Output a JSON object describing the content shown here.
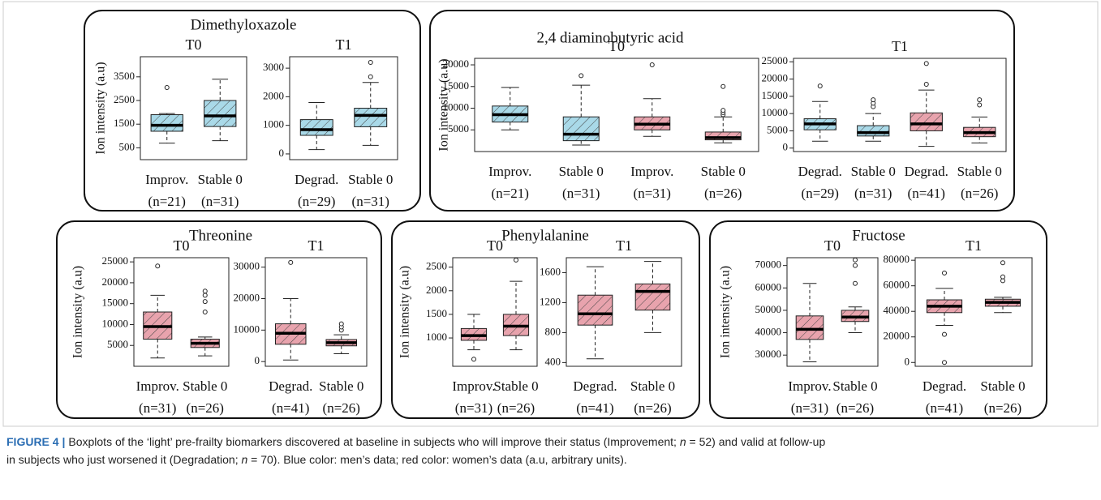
{
  "chart_data": [
    {
      "type": "box",
      "panel_title": "Dimethyloxazole",
      "title": "T0",
      "ylabel": "Ion intensity (a.u)",
      "categories": [
        "Improv.",
        "Stable 0"
      ],
      "n_labels": [
        "(n=21)",
        "(n=31)"
      ],
      "ylim": [
        0,
        4350
      ],
      "yticks": [
        500,
        1500,
        2500,
        3500
      ],
      "boxes": [
        {
          "color": "#a9d9e8",
          "whislo": 700,
          "q1": 1200,
          "med": 1450,
          "q3": 1900,
          "whishi": 1950,
          "fliers": [
            3050
          ]
        },
        {
          "color": "#a9d9e8",
          "whislo": 800,
          "q1": 1400,
          "med": 1850,
          "q3": 2500,
          "whishi": 3400,
          "fliers": []
        }
      ]
    },
    {
      "type": "box",
      "title": "T1",
      "categories": [
        "Degrad.",
        "Stable 0"
      ],
      "n_labels": [
        "(n=29)",
        "(n=31)"
      ],
      "ylim": [
        -200,
        3400
      ],
      "yticks": [
        0,
        1000,
        2000,
        3000
      ],
      "boxes": [
        {
          "color": "#a9d9e8",
          "whislo": 150,
          "q1": 650,
          "med": 850,
          "q3": 1200,
          "whishi": 1800,
          "fliers": []
        },
        {
          "color": "#a9d9e8",
          "whislo": 300,
          "q1": 950,
          "med": 1350,
          "q3": 1600,
          "whishi": 2500,
          "fliers": [
            2700,
            3200
          ]
        }
      ]
    },
    {
      "type": "box",
      "panel_title": "2,4 diaminobutyric acid",
      "title": "T0",
      "ylabel": "Ion intensity (a.u)",
      "categories": [
        "Improv.",
        "Stable 0",
        "Improv.",
        "Stable 0"
      ],
      "n_labels": [
        "(n=21)",
        "(n=31)",
        "(n=31)",
        "(n=26)"
      ],
      "ylim": [
        0,
        21500
      ],
      "yticks": [
        5000,
        10000,
        15000,
        20000
      ],
      "boxes": [
        {
          "color": "#a9d9e8",
          "whislo": 5000,
          "q1": 6800,
          "med": 8500,
          "q3": 10500,
          "whishi": 14800,
          "fliers": []
        },
        {
          "color": "#a9d9e8",
          "whislo": 1500,
          "q1": 2500,
          "med": 4000,
          "q3": 8000,
          "whishi": 15300,
          "fliers": [
            17500
          ]
        },
        {
          "color": "#e8a3ad",
          "whislo": 3500,
          "q1": 5000,
          "med": 6300,
          "q3": 8000,
          "whishi": 12200,
          "fliers": [
            20000
          ]
        },
        {
          "color": "#e8a3ad",
          "whislo": 2000,
          "q1": 2700,
          "med": 3200,
          "q3": 4500,
          "whishi": 8000,
          "fliers": [
            8500,
            9000,
            9500,
            15000
          ]
        }
      ]
    },
    {
      "type": "box",
      "title": "T1",
      "categories": [
        "Degrad.",
        "Stable 0",
        "Degrad.",
        "Stable 0"
      ],
      "n_labels": [
        "(n=29)",
        "(n=31)",
        "(n=41)",
        "(n=26)"
      ],
      "ylim": [
        -1000,
        26000
      ],
      "yticks": [
        0,
        5000,
        10000,
        15000,
        20000,
        25000
      ],
      "boxes": [
        {
          "color": "#a9d9e8",
          "whislo": 2000,
          "q1": 5300,
          "med": 7000,
          "q3": 8500,
          "whishi": 13500,
          "fliers": [
            18000
          ]
        },
        {
          "color": "#a9d9e8",
          "whislo": 2000,
          "q1": 3500,
          "med": 4500,
          "q3": 6500,
          "whishi": 10000,
          "fliers": [
            12000,
            13000,
            14000
          ]
        },
        {
          "color": "#e8a3ad",
          "whislo": 500,
          "q1": 5000,
          "med": 7000,
          "q3": 10200,
          "whishi": 16800,
          "fliers": [
            18500,
            24500
          ]
        },
        {
          "color": "#e8a3ad",
          "whislo": 1500,
          "q1": 3300,
          "med": 4500,
          "q3": 6000,
          "whishi": 9000,
          "fliers": [
            12500,
            14000
          ]
        }
      ]
    },
    {
      "type": "box",
      "panel_title": "Threonine",
      "title": "T0",
      "ylabel": "Ion intensity (a.u)",
      "categories": [
        "Improv.",
        "Stable 0"
      ],
      "n_labels": [
        "(n=31)",
        "(n=26)"
      ],
      "ylim": [
        0,
        26000
      ],
      "yticks": [
        5000,
        10000,
        15000,
        20000,
        25000
      ],
      "boxes": [
        {
          "color": "#e8a3ad",
          "whislo": 2000,
          "q1": 6500,
          "med": 9500,
          "q3": 13000,
          "whishi": 17000,
          "fliers": [
            24000
          ]
        },
        {
          "color": "#e8a3ad",
          "whislo": 2500,
          "q1": 4500,
          "med": 5500,
          "q3": 6500,
          "whishi": 7000,
          "fliers": [
            13000,
            15500,
            17000,
            18000
          ]
        }
      ]
    },
    {
      "type": "box",
      "title": "T1",
      "categories": [
        "Degrad.",
        "Stable 0"
      ],
      "n_labels": [
        "(n=41)",
        "(n=26)"
      ],
      "ylim": [
        -1500,
        33000
      ],
      "yticks": [
        0,
        10000,
        20000,
        30000
      ],
      "boxes": [
        {
          "color": "#e8a3ad",
          "whislo": 500,
          "q1": 5500,
          "med": 9000,
          "q3": 12000,
          "whishi": 20000,
          "fliers": [
            31500
          ]
        },
        {
          "color": "#e8a3ad",
          "whislo": 2500,
          "q1": 5000,
          "med": 6000,
          "q3": 7000,
          "whishi": 8500,
          "fliers": [
            10000,
            11000,
            12000
          ]
        }
      ]
    },
    {
      "type": "box",
      "panel_title": "Phenylalanine",
      "title": "T0",
      "ylabel": "Ion intensity (a.u)",
      "categories": [
        "Improv.",
        "Stable 0"
      ],
      "n_labels": [
        "(n=31)",
        "(n=26)"
      ],
      "ylim": [
        400,
        2700
      ],
      "yticks": [
        1000,
        1500,
        2000,
        2500
      ],
      "boxes": [
        {
          "color": "#e8a3ad",
          "whislo": 750,
          "q1": 950,
          "med": 1050,
          "q3": 1200,
          "whishi": 1500,
          "fliers": [
            550
          ]
        },
        {
          "color": "#e8a3ad",
          "whislo": 750,
          "q1": 1050,
          "med": 1250,
          "q3": 1500,
          "whishi": 2200,
          "fliers": [
            2650
          ]
        }
      ]
    },
    {
      "type": "box",
      "title": "T1",
      "categories": [
        "Degrad.",
        "Stable 0"
      ],
      "n_labels": [
        "(n=41)",
        "(n=26)"
      ],
      "ylim": [
        350,
        1800
      ],
      "yticks": [
        400,
        800,
        1200,
        1600
      ],
      "boxes": [
        {
          "color": "#e8a3ad",
          "whislo": 450,
          "q1": 900,
          "med": 1050,
          "q3": 1300,
          "whishi": 1680,
          "fliers": []
        },
        {
          "color": "#e8a3ad",
          "whislo": 800,
          "q1": 1100,
          "med": 1350,
          "q3": 1450,
          "whishi": 1750,
          "fliers": []
        }
      ]
    },
    {
      "type": "box",
      "panel_title": "Fructose",
      "title": "T0",
      "ylabel": "Ion intensity (a.u)",
      "categories": [
        "Improv.",
        "Stable 0"
      ],
      "n_labels": [
        "(n=31)",
        "(n=26)"
      ],
      "ylim": [
        25000,
        73500
      ],
      "yticks": [
        30000,
        40000,
        50000,
        60000,
        70000
      ],
      "boxes": [
        {
          "color": "#e8a3ad",
          "whislo": 27000,
          "q1": 37000,
          "med": 41500,
          "q3": 47500,
          "whishi": 62000,
          "fliers": []
        },
        {
          "color": "#e8a3ad",
          "whislo": 40000,
          "q1": 45000,
          "med": 47000,
          "q3": 50000,
          "whishi": 51500,
          "fliers": [
            62000,
            70000,
            72500
          ]
        }
      ]
    },
    {
      "type": "box",
      "title": "T1",
      "categories": [
        "Degrad.",
        "Stable 0"
      ],
      "n_labels": [
        "(n=41)",
        "(n=26)"
      ],
      "ylim": [
        -3000,
        82000
      ],
      "yticks": [
        0,
        20000,
        40000,
        60000,
        80000
      ],
      "boxes": [
        {
          "color": "#e8a3ad",
          "whislo": 29000,
          "q1": 39000,
          "med": 44000,
          "q3": 49000,
          "whishi": 58000,
          "fliers": [
            0,
            22000,
            70000
          ]
        },
        {
          "color": "#e8a3ad",
          "whislo": 39000,
          "q1": 44000,
          "med": 47000,
          "q3": 49500,
          "whishi": 51000,
          "fliers": [
            64000,
            67000,
            78000
          ]
        }
      ]
    }
  ],
  "caption": {
    "label": "FIGURE 4 |",
    "parts": [
      "Boxplots of the ‘light’ pre-frailty biomarkers discovered at baseline in subjects who will improve their status (Improvement; ",
      "n",
      " = 52) and valid at follow-up",
      "in subjects who just worsened it (Degradation; ",
      "n",
      " = 70). Blue color: men’s data; red color: women’s data (a.u, arbitrary units)."
    ]
  }
}
